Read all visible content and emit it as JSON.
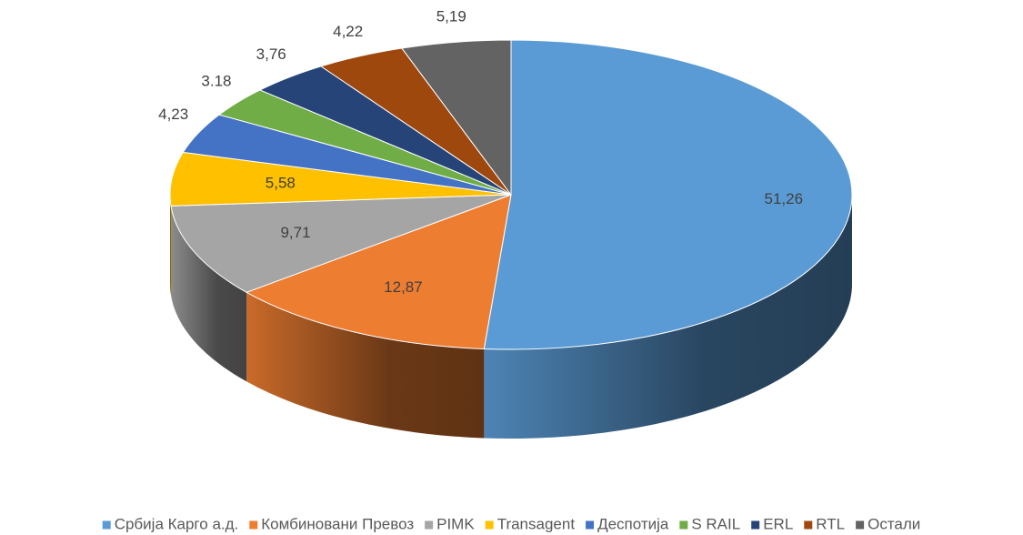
{
  "chart_data": {
    "type": "pie3d",
    "categories": [
      "Србија Карго а.д.",
      "Комбиновани Превоз",
      "PIMK",
      "Transagent",
      "Деспотија",
      "S RAIL",
      "ERL",
      "RTL",
      "Остали"
    ],
    "values": [
      51.26,
      12.87,
      9.71,
      5.58,
      4.23,
      3.18,
      3.76,
      4.22,
      5.19
    ],
    "value_labels": [
      "51,26",
      "12,87",
      "9,71",
      "5,58",
      "4,23",
      "3.18",
      "3,76",
      "4,22",
      "5,19"
    ],
    "colors": [
      "#5b9bd5",
      "#ed7d31",
      "#a5a5a5",
      "#ffc000",
      "#4472c4",
      "#70ad47",
      "#264478",
      "#9e480e",
      "#636363"
    ],
    "legend": "bottom"
  }
}
